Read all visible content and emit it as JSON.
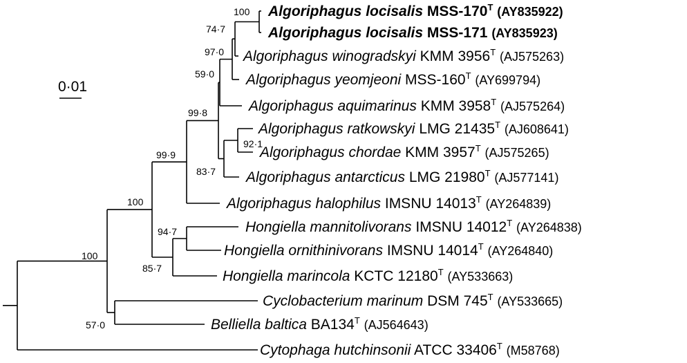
{
  "tree": {
    "scale_bar": {
      "label": "0·01"
    },
    "taxa": [
      {
        "id": "t1",
        "genus": "Algoriphagus",
        "species": "locisalis",
        "strain": "MSS-170",
        "type_strain": true,
        "accession": "(AY835922)",
        "bold": true
      },
      {
        "id": "t2",
        "genus": "Algoriphagus",
        "species": "locisalis",
        "strain": "MSS-171",
        "type_strain": false,
        "accession": "(AY835923)",
        "bold": true
      },
      {
        "id": "t3",
        "genus": "Algoriphagus",
        "species": "winogradskyi",
        "strain": "KMM 3956",
        "type_strain": true,
        "accession": "(AJ575263)",
        "bold": false
      },
      {
        "id": "t4",
        "genus": "Algoriphagus",
        "species": "yeomjeoni",
        "strain": "MSS-160",
        "type_strain": true,
        "accession": "(AY699794)",
        "bold": false
      },
      {
        "id": "t5",
        "genus": "Algoriphagus",
        "species": "aquimarinus",
        "strain": "KMM 3958",
        "type_strain": true,
        "accession": "(AJ575264)",
        "bold": false
      },
      {
        "id": "t6",
        "genus": "Algoriphagus",
        "species": "ratkowskyi",
        "strain": "LMG 21435",
        "type_strain": true,
        "accession": "(AJ608641)",
        "bold": false
      },
      {
        "id": "t7",
        "genus": "Algoriphagus",
        "species": "chordae",
        "strain": "KMM 3957",
        "type_strain": true,
        "accession": "(AJ575265)",
        "bold": false
      },
      {
        "id": "t8",
        "genus": "Algoriphagus",
        "species": "antarcticus",
        "strain": "LMG 21980",
        "type_strain": true,
        "accession": "(AJ577141)",
        "bold": false
      },
      {
        "id": "t9",
        "genus": "Algoriphagus",
        "species": "halophilus",
        "strain": "IMSNU 14013",
        "type_strain": true,
        "accession": "(AY264839)",
        "bold": false
      },
      {
        "id": "t10",
        "genus": "Hongiella",
        "species": "mannitolivorans",
        "strain": "IMSNU 14012",
        "type_strain": true,
        "accession": "(AY264838)",
        "bold": false
      },
      {
        "id": "t11",
        "genus": "Hongiella",
        "species": "ornithinivorans",
        "strain": "IMSNU 14014",
        "type_strain": true,
        "accession": "(AY264840)",
        "bold": false
      },
      {
        "id": "t12",
        "genus": "Hongiella",
        "species": "marincola",
        "strain": "KCTC 12180",
        "type_strain": true,
        "accession": "(AY533663)",
        "bold": false
      },
      {
        "id": "t13",
        "genus": "Cyclobacterium",
        "species": "marinum",
        "strain": "DSM 745",
        "type_strain": true,
        "accession": "(AY533665)",
        "bold": false
      },
      {
        "id": "t14",
        "genus": "Belliella",
        "species": "baltica",
        "strain": "BA134",
        "type_strain": true,
        "accession": "(AJ564643)",
        "bold": false
      },
      {
        "id": "t15",
        "genus": "Cytophaga",
        "species": "hutchinsonii",
        "strain": "ATCC 33406",
        "type_strain": true,
        "accession": "(M58768)",
        "bold": false
      }
    ],
    "bootstrap": [
      {
        "id": "n_loci",
        "value": "100"
      },
      {
        "id": "n_wino",
        "value": "74·7"
      },
      {
        "id": "n_yeom",
        "value": "97·0"
      },
      {
        "id": "n_aqui",
        "value": "59·0"
      },
      {
        "id": "n_algA",
        "value": "99·8"
      },
      {
        "id": "n_ratk",
        "value": "92·1"
      },
      {
        "id": "n_antc",
        "value": "83·7"
      },
      {
        "id": "n_algo",
        "value": "99·9"
      },
      {
        "id": "n_algh",
        "value": "100"
      },
      {
        "id": "n_hong2",
        "value": "94·7"
      },
      {
        "id": "n_hong",
        "value": "85·7"
      },
      {
        "id": "n_main",
        "value": "100"
      },
      {
        "id": "n_cycb",
        "value": "57·0"
      }
    ]
  }
}
